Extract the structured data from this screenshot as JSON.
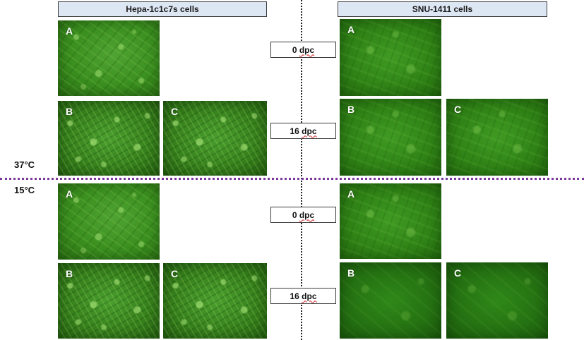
{
  "headers": {
    "left": "Hepa-1c1c7s cells",
    "right": "SNU-1411 cells"
  },
  "temperatures": {
    "top": "37°C",
    "bottom": "15°C"
  },
  "dpc_labels": {
    "row1": {
      "num": "0",
      "unit": "dpc"
    },
    "row2": {
      "num": "16",
      "unit": "dpc"
    },
    "row3": {
      "num": "0",
      "unit": "dpc"
    },
    "row4": {
      "num": "16",
      "unit": "dpc"
    }
  },
  "panel_letters": {
    "a": "A",
    "b": "B",
    "c": "C"
  },
  "colors": {
    "header_fill": "#dde7f4",
    "divider_horizontal": "#7b3a9a",
    "micrograph_green": "#2f7f17"
  }
}
